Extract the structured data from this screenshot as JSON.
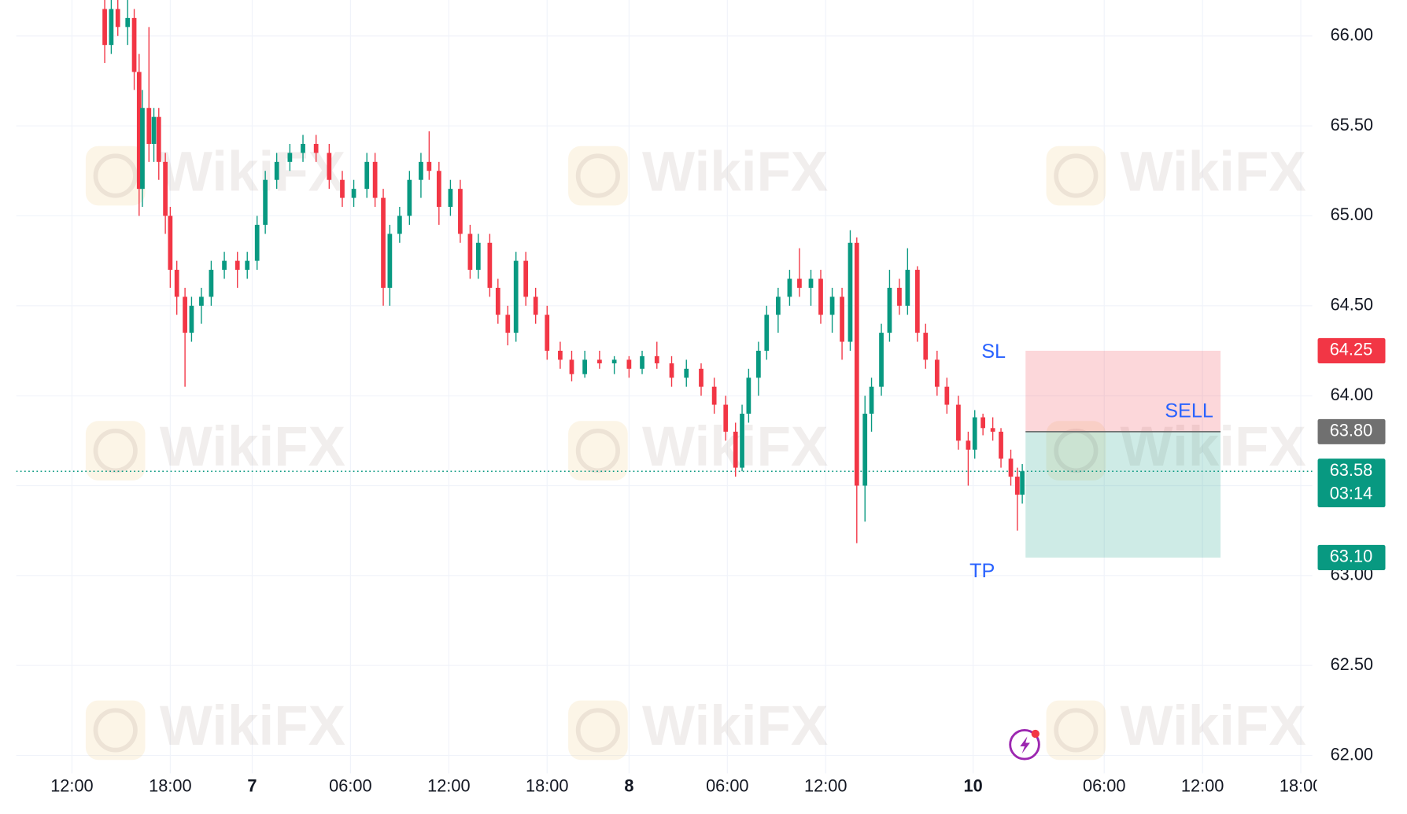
{
  "chart_data": {
    "type": "candlestick",
    "watermark": "WikiFX",
    "up_color": "#089981",
    "down_color": "#f23645",
    "grid": true,
    "xlim": [
      8.6,
      87.7
    ],
    "ylim": [
      61.9,
      66.2
    ],
    "xticks": [
      {
        "value": 12,
        "label": "12:00"
      },
      {
        "value": 18,
        "label": "18:00"
      },
      {
        "value": 23,
        "label": "7"
      },
      {
        "value": 29,
        "label": "06:00"
      },
      {
        "value": 35,
        "label": "12:00"
      },
      {
        "value": 41,
        "label": "18:00"
      },
      {
        "value": 46,
        "label": "8"
      },
      {
        "value": 52,
        "label": "06:00"
      },
      {
        "value": 58,
        "label": "12:00"
      },
      {
        "value": 67,
        "label": "10"
      },
      {
        "value": 75,
        "label": "06:00"
      },
      {
        "value": 81,
        "label": "12:00"
      },
      {
        "value": 87,
        "label": "18:00"
      }
    ],
    "yticks": [
      {
        "value": 62,
        "label": "62.00"
      },
      {
        "value": 62.5,
        "label": "62.50"
      },
      {
        "value": 63,
        "label": "63.00"
      },
      {
        "value": 63.5,
        "label": "63.50"
      },
      {
        "value": 64,
        "label": "64.00"
      },
      {
        "value": 64.5,
        "label": "64.50"
      },
      {
        "value": 65,
        "label": "65.00"
      },
      {
        "value": 65.5,
        "label": "65.50"
      },
      {
        "value": 66,
        "label": "66.00"
      }
    ],
    "x": [
      14.0,
      14.4,
      14.8,
      15.4,
      15.8,
      16.1,
      16.3,
      16.7,
      17.0,
      17.3,
      17.7,
      18.0,
      18.4,
      18.9,
      19.3,
      19.9,
      20.5,
      21.3,
      22.1,
      22.7,
      23.3,
      23.8,
      24.5,
      25.3,
      26.1,
      26.9,
      27.7,
      28.5,
      29.2,
      30.0,
      30.5,
      31.0,
      31.4,
      32.0,
      32.6,
      33.3,
      33.8,
      34.4,
      35.1,
      35.7,
      36.3,
      36.8,
      37.5,
      38.0,
      38.6,
      39.1,
      39.7,
      40.3,
      41.0,
      41.8,
      42.5,
      43.3,
      44.2,
      45.1,
      46.0,
      46.8,
      47.7,
      48.6,
      49.5,
      50.4,
      51.2,
      51.9,
      52.5,
      52.9,
      53.3,
      53.9,
      54.4,
      55.1,
      55.8,
      56.4,
      57.1,
      57.7,
      58.4,
      59.0,
      59.5,
      59.9,
      60.4,
      60.8,
      61.4,
      61.9,
      62.5,
      63.0,
      63.6,
      64.1,
      64.8,
      65.4,
      66.1,
      66.7,
      67.1,
      67.6,
      68.2,
      68.7,
      69.3,
      69.7,
      70.0
    ],
    "open": [
      66.15,
      65.95,
      66.15,
      66.05,
      66.1,
      65.8,
      65.15,
      65.6,
      65.4,
      65.55,
      65.3,
      65.0,
      64.7,
      64.55,
      64.35,
      64.5,
      64.55,
      64.7,
      64.75,
      64.7,
      64.75,
      64.95,
      65.2,
      65.3,
      65.35,
      65.4,
      65.35,
      65.2,
      65.1,
      65.15,
      65.3,
      65.1,
      64.6,
      64.9,
      65.0,
      65.2,
      65.3,
      65.25,
      65.05,
      65.15,
      64.9,
      64.7,
      64.85,
      64.6,
      64.45,
      64.35,
      64.75,
      64.55,
      64.45,
      64.25,
      64.2,
      64.12,
      64.2,
      64.18,
      64.2,
      64.15,
      64.22,
      64.18,
      64.1,
      64.15,
      64.05,
      63.95,
      63.8,
      63.6,
      63.9,
      64.1,
      64.25,
      64.45,
      64.55,
      64.65,
      64.6,
      64.65,
      64.45,
      64.55,
      64.3,
      64.85,
      63.5,
      63.9,
      64.05,
      64.35,
      64.6,
      64.5,
      64.7,
      64.35,
      64.2,
      64.05,
      63.95,
      63.75,
      63.7,
      63.88,
      63.82,
      63.8,
      63.65,
      63.55,
      63.45
    ],
    "high": [
      66.25,
      66.2,
      66.25,
      66.2,
      66.15,
      65.9,
      65.7,
      66.05,
      65.6,
      65.6,
      65.35,
      65.05,
      64.75,
      64.6,
      64.55,
      64.6,
      64.75,
      64.8,
      64.8,
      64.8,
      65.0,
      65.25,
      65.35,
      65.4,
      65.45,
      65.45,
      65.4,
      65.25,
      65.2,
      65.35,
      65.35,
      65.15,
      64.95,
      65.05,
      65.25,
      65.35,
      65.47,
      65.3,
      65.2,
      65.2,
      64.95,
      64.9,
      64.9,
      64.65,
      64.5,
      64.8,
      64.8,
      64.6,
      64.5,
      64.3,
      64.25,
      64.25,
      64.25,
      64.22,
      64.22,
      64.25,
      64.3,
      64.22,
      64.2,
      64.18,
      64.1,
      64.0,
      63.85,
      63.95,
      64.15,
      64.3,
      64.5,
      64.6,
      64.7,
      64.82,
      64.7,
      64.7,
      64.6,
      64.6,
      64.92,
      64.88,
      64.0,
      64.1,
      64.4,
      64.7,
      64.65,
      64.82,
      64.72,
      64.4,
      64.25,
      64.1,
      64.0,
      63.8,
      63.92,
      63.9,
      63.88,
      63.82,
      63.7,
      63.6,
      63.62
    ],
    "low": [
      65.85,
      65.9,
      66.0,
      65.95,
      65.7,
      65.0,
      65.05,
      65.3,
      65.3,
      65.2,
      64.9,
      64.6,
      64.45,
      64.05,
      64.3,
      64.4,
      64.5,
      64.65,
      64.6,
      64.65,
      64.7,
      64.9,
      65.15,
      65.25,
      65.3,
      65.3,
      65.15,
      65.05,
      65.05,
      65.1,
      65.05,
      64.5,
      64.5,
      64.85,
      64.95,
      65.1,
      65.2,
      64.95,
      65.0,
      64.85,
      64.65,
      64.65,
      64.55,
      64.4,
      64.28,
      64.3,
      64.5,
      64.4,
      64.2,
      64.15,
      64.08,
      64.1,
      64.15,
      64.12,
      64.1,
      64.12,
      64.15,
      64.05,
      64.05,
      64.0,
      63.9,
      63.75,
      63.55,
      63.58,
      63.85,
      64.0,
      64.2,
      64.35,
      64.5,
      64.55,
      64.5,
      64.4,
      64.35,
      64.2,
      64.25,
      63.18,
      63.3,
      63.8,
      64.0,
      64.3,
      64.45,
      64.45,
      64.3,
      64.15,
      64.0,
      63.9,
      63.7,
      63.5,
      63.65,
      63.78,
      63.75,
      63.6,
      63.5,
      63.25,
      63.4
    ],
    "close": [
      65.95,
      66.15,
      66.05,
      66.1,
      65.8,
      65.15,
      65.6,
      65.4,
      65.55,
      65.3,
      65.0,
      64.7,
      64.55,
      64.35,
      64.5,
      64.55,
      64.7,
      64.75,
      64.7,
      64.75,
      64.95,
      65.2,
      65.3,
      65.35,
      65.4,
      65.35,
      65.2,
      65.1,
      65.15,
      65.3,
      65.1,
      64.6,
      64.9,
      65.0,
      65.2,
      65.3,
      65.25,
      65.05,
      65.15,
      64.9,
      64.7,
      64.85,
      64.6,
      64.45,
      64.35,
      64.75,
      64.55,
      64.45,
      64.25,
      64.2,
      64.12,
      64.2,
      64.18,
      64.2,
      64.15,
      64.22,
      64.18,
      64.1,
      64.15,
      64.05,
      63.95,
      63.8,
      63.6,
      63.9,
      64.1,
      64.25,
      64.45,
      64.55,
      64.65,
      64.6,
      64.65,
      64.45,
      64.55,
      64.3,
      64.85,
      63.5,
      63.9,
      64.05,
      64.35,
      64.6,
      64.5,
      64.7,
      64.35,
      64.2,
      64.05,
      63.95,
      63.75,
      63.7,
      63.88,
      63.82,
      63.8,
      63.65,
      63.55,
      63.45,
      63.58
    ],
    "current_price": {
      "value": 63.58,
      "label": "63.58",
      "countdown": "03:14",
      "color": "#089981"
    },
    "position": {
      "label": "SELL",
      "sl_label": "SL",
      "tp_label": "TP",
      "x": [
        70.2,
        82.1
      ],
      "entry": {
        "value": 63.8,
        "label": "63.80",
        "color": "#707070"
      },
      "stop_loss": {
        "value": 64.25,
        "label": "64.25",
        "color": "#f23645"
      },
      "take_profit": {
        "value": 63.1,
        "label": "63.10",
        "color": "#089981"
      }
    }
  }
}
